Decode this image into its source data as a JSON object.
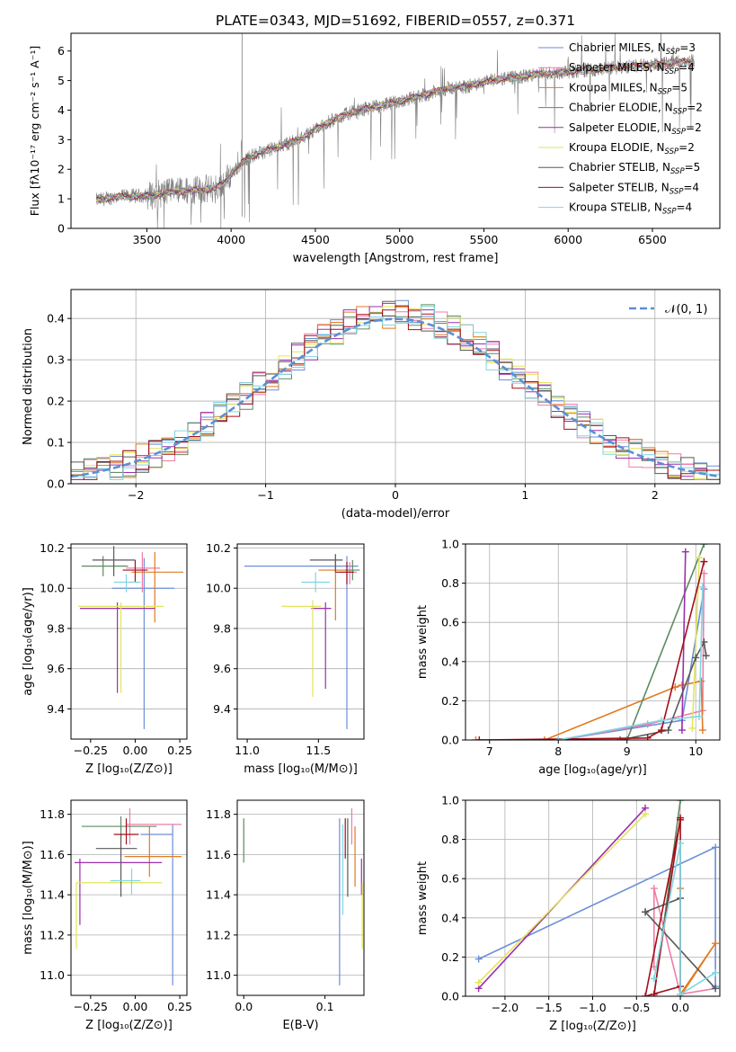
{
  "figure_title": "PLATE=0343, MJD=51692, FIBERID=0557, z=0.371",
  "colors": {
    "Chabrier MILES": "#6a8fd8",
    "Salpeter MILES": "#f07ca8",
    "Kroupa MILES": "#e07b24",
    "Chabrier ELODIE": "#5d8a60",
    "Salpeter ELODIE": "#9b2fae",
    "Kroupa ELODIE": "#e2e55a",
    "Chabrier STELIB": "#595959",
    "Salpeter STELIB": "#a0101a",
    "Kroupa STELIB": "#7ed6e2",
    "data": "#808080",
    "gauss": "#5b8fd6"
  },
  "legend_entries": [
    {
      "name": "Chabrier MILES",
      "nssp": "3"
    },
    {
      "name": "Salpeter MILES",
      "nssp": "4"
    },
    {
      "name": "Kroupa MILES",
      "nssp": "5"
    },
    {
      "name": "Chabrier ELODIE",
      "nssp": "2"
    },
    {
      "name": "Salpeter ELODIE",
      "nssp": "2"
    },
    {
      "name": "Kroupa ELODIE",
      "nssp": "2"
    },
    {
      "name": "Chabrier STELIB",
      "nssp": "5"
    },
    {
      "name": "Salpeter STELIB",
      "nssp": "4"
    },
    {
      "name": "Kroupa STELIB",
      "nssp": "4"
    }
  ],
  "chart_data": [
    {
      "id": "spectrum",
      "type": "line",
      "title": "PLATE=0343, MJD=51692, FIBERID=0557, z=0.371",
      "xlabel": "wavelength [Angstrom, rest frame]",
      "ylabel": "Flux [f_λ 10^-17 erg cm^-2 s^-1 A^-1]",
      "xlim": [
        3050,
        6900
      ],
      "ylim": [
        0,
        6.6
      ],
      "xticks": [
        3500,
        4000,
        4500,
        5000,
        5500,
        6000,
        6500
      ],
      "yticks": [
        0,
        1,
        2,
        3,
        4,
        5,
        6
      ],
      "x": [
        3200,
        3300,
        3400,
        3500,
        3600,
        3700,
        3800,
        3900,
        3950,
        4000,
        4100,
        4200,
        4300,
        4400,
        4500,
        4600,
        4700,
        4800,
        4900,
        5000,
        5100,
        5200,
        5300,
        5400,
        5500,
        5600,
        5700,
        5800,
        5900,
        6000,
        6100,
        6200,
        6300,
        6400,
        6500,
        6600,
        6750
      ],
      "continuum": [
        0.95,
        1.05,
        1.1,
        1.1,
        1.2,
        1.25,
        1.3,
        1.35,
        1.5,
        1.85,
        2.4,
        2.6,
        2.8,
        3.0,
        3.35,
        3.65,
        3.9,
        4.05,
        4.15,
        4.3,
        4.45,
        4.6,
        4.75,
        4.8,
        4.95,
        5.05,
        5.1,
        5.2,
        5.25,
        5.3,
        5.35,
        5.4,
        5.45,
        5.5,
        5.55,
        5.6,
        5.65
      ],
      "series": [
        {
          "name": "Chabrier MILES",
          "nssp": "3"
        },
        {
          "name": "Salpeter MILES",
          "nssp": "4"
        },
        {
          "name": "Kroupa MILES",
          "nssp": "5"
        },
        {
          "name": "Chabrier ELODIE",
          "nssp": "2"
        },
        {
          "name": "Salpeter ELODIE",
          "nssp": "2"
        },
        {
          "name": "Kroupa ELODIE",
          "nssp": "2"
        },
        {
          "name": "Chabrier STELIB",
          "nssp": "5"
        },
        {
          "name": "Salpeter STELIB",
          "nssp": "4"
        },
        {
          "name": "Kroupa STELIB",
          "nssp": "4"
        }
      ]
    },
    {
      "id": "residuals",
      "type": "line",
      "xlabel": "(data-model)/error",
      "ylabel": "Normed distribution",
      "xlim": [
        -2.5,
        2.5
      ],
      "ylim": [
        0,
        0.47
      ],
      "xticks": [
        -2,
        -1,
        0,
        1,
        2
      ],
      "yticks": [
        0.0,
        0.1,
        0.2,
        0.3,
        0.4
      ],
      "grid": true,
      "legend": "N(0,1)",
      "legend_position": "top-right",
      "bin_width": 0.1
    },
    {
      "id": "age-vs-Z",
      "type": "scatter",
      "xlabel": "Z [log10(Z/Z_sun)]",
      "ylabel": "age [log10(age/yr)]",
      "xlim": [
        -0.36,
        0.29
      ],
      "ylim": [
        9.25,
        10.22
      ],
      "xticks": [
        -0.25,
        0.0,
        0.25
      ],
      "yticks": [
        9.4,
        9.6,
        9.8,
        10.0,
        10.2
      ],
      "points": [
        {
          "name": "Chabrier MILES",
          "x": 0.05,
          "y": 10.0,
          "xerr": [
            0.18,
            0.17
          ],
          "yerr": [
            0.7,
            0.15
          ]
        },
        {
          "name": "Salpeter MILES",
          "x": 0.04,
          "y": 10.1,
          "xerr": [
            0.09,
            0.1
          ],
          "yerr": [
            0.12,
            0.08
          ]
        },
        {
          "name": "Kroupa MILES",
          "x": 0.11,
          "y": 10.08,
          "xerr": [
            0.13,
            0.16
          ],
          "yerr": [
            0.25,
            0.1
          ]
        },
        {
          "name": "Chabrier ELODIE",
          "x": -0.18,
          "y": 10.11,
          "xerr": [
            0.12,
            0.14
          ],
          "yerr": [
            0.05,
            0.05
          ]
        },
        {
          "name": "Salpeter ELODIE",
          "x": -0.1,
          "y": 9.9,
          "xerr": [
            0.21,
            0.21
          ],
          "yerr": [
            0.42,
            0.03
          ]
        },
        {
          "name": "Kroupa ELODIE",
          "x": -0.08,
          "y": 9.91,
          "xerr": [
            0.24,
            0.24
          ],
          "yerr": [
            0.43,
            0.02
          ]
        },
        {
          "name": "Chabrier STELIB",
          "x": -0.12,
          "y": 10.14,
          "xerr": [
            0.12,
            0.12
          ],
          "yerr": [
            0.08,
            0.07
          ]
        },
        {
          "name": "Salpeter STELIB",
          "x": 0.0,
          "y": 10.09,
          "xerr": [
            0.07,
            0.07
          ],
          "yerr": [
            0.06,
            0.05
          ]
        },
        {
          "name": "Kroupa STELIB",
          "x": -0.05,
          "y": 10.03,
          "xerr": [
            0.07,
            0.08
          ],
          "yerr": [
            0.05,
            0.04
          ]
        }
      ]
    },
    {
      "id": "age-vs-mass",
      "type": "scatter",
      "xlabel": "mass [log10(M/M_sun)]",
      "xlim": [
        10.93,
        11.82
      ],
      "ylim": [
        9.25,
        10.22
      ],
      "xticks": [
        11.0,
        11.5
      ],
      "yticks": [
        9.4,
        9.6,
        9.8,
        10.0,
        10.2
      ],
      "points": [
        {
          "name": "Chabrier MILES",
          "x": 11.7,
          "y": 10.11,
          "xerr": [
            0.72,
            0.08
          ],
          "yerr": [
            0.81,
            0.05
          ]
        },
        {
          "name": "Salpeter MILES",
          "x": 11.72,
          "y": 10.08,
          "xerr": [
            0.07,
            0.05
          ],
          "yerr": [
            0.06,
            0.05
          ]
        },
        {
          "name": "Kroupa MILES",
          "x": 11.62,
          "y": 10.09,
          "xerr": [
            0.12,
            0.08
          ],
          "yerr": [
            0.25,
            0.07
          ]
        },
        {
          "name": "Chabrier ELODIE",
          "x": 11.74,
          "y": 10.09,
          "xerr": [
            0.05,
            0.05
          ],
          "yerr": [
            0.05,
            0.05
          ]
        },
        {
          "name": "Salpeter ELODIE",
          "x": 11.55,
          "y": 9.9,
          "xerr": [
            0.1,
            0.04
          ],
          "yerr": [
            0.4,
            0.03
          ]
        },
        {
          "name": "Kroupa ELODIE",
          "x": 11.46,
          "y": 9.91,
          "xerr": [
            0.22,
            0.06
          ],
          "yerr": [
            0.45,
            0.03
          ]
        },
        {
          "name": "Chabrier STELIB",
          "x": 11.62,
          "y": 10.14,
          "xerr": [
            0.18,
            0.05
          ],
          "yerr": [
            0.06,
            0.03
          ]
        },
        {
          "name": "Salpeter STELIB",
          "x": 11.7,
          "y": 10.08,
          "xerr": [
            0.08,
            0.05
          ],
          "yerr": [
            0.06,
            0.05
          ]
        },
        {
          "name": "Kroupa STELIB",
          "x": 11.48,
          "y": 10.03,
          "xerr": [
            0.1,
            0.1
          ],
          "yerr": [
            0.05,
            0.05
          ]
        }
      ]
    },
    {
      "id": "mass-weight-vs-age",
      "type": "line",
      "xlabel": "age [log10(age/yr)]",
      "ylabel": "mass weight",
      "xlim": [
        6.65,
        10.35
      ],
      "ylim": [
        0,
        1.0
      ],
      "xticks": [
        7,
        8,
        9,
        10
      ],
      "yticks": [
        0.0,
        0.2,
        0.4,
        0.6,
        0.8,
        1.0
      ],
      "grid": true,
      "series": [
        {
          "name": "Chabrier MILES",
          "x": [
            8.0,
            9.8,
            10.12
          ],
          "y": [
            0.0,
            0.1,
            0.77
          ]
        },
        {
          "name": "Salpeter MILES",
          "x": [
            8.0,
            9.3,
            10.1,
            10.12
          ],
          "y": [
            0.0,
            0.08,
            0.15,
            0.85
          ]
        },
        {
          "name": "Kroupa MILES",
          "x": [
            6.8,
            7.8,
            9.7,
            9.8,
            10.08,
            10.1
          ],
          "y": [
            0.0,
            0.0,
            0.27,
            0.28,
            0.3,
            0.05
          ]
        },
        {
          "name": "Chabrier ELODIE",
          "x": [
            9.0,
            10.12
          ],
          "y": [
            0.0,
            1.0
          ]
        },
        {
          "name": "Salpeter ELODIE",
          "x": [
            9.8,
            9.85
          ],
          "y": [
            0.05,
            0.96
          ]
        },
        {
          "name": "Kroupa ELODIE",
          "x": [
            9.95,
            10.05
          ],
          "y": [
            0.06,
            0.93
          ]
        },
        {
          "name": "Chabrier STELIB",
          "x": [
            8.0,
            8.9,
            9.6,
            10.0,
            10.12,
            10.15
          ],
          "y": [
            0.0,
            0.0,
            0.05,
            0.42,
            0.5,
            0.43
          ]
        },
        {
          "name": "Salpeter STELIB",
          "x": [
            6.85,
            9.3,
            9.5,
            10.12
          ],
          "y": [
            0.0,
            0.01,
            0.05,
            0.91
          ]
        },
        {
          "name": "Kroupa STELIB",
          "x": [
            8.0,
            9.5,
            10.05,
            10.1
          ],
          "y": [
            0.0,
            0.1,
            0.12,
            0.78
          ]
        }
      ]
    },
    {
      "id": "mass-vs-Z",
      "type": "scatter",
      "xlabel": "Z [log10(Z/Z_sun)]",
      "ylabel": "mass [log10(M/M_sun)]",
      "xlim": [
        -0.36,
        0.29
      ],
      "ylim": [
        10.9,
        11.87
      ],
      "xticks": [
        -0.25,
        0.0,
        0.25
      ],
      "yticks": [
        11.0,
        11.2,
        11.4,
        11.6,
        11.8
      ],
      "points": [
        {
          "name": "Chabrier MILES",
          "x": 0.21,
          "y": 11.7,
          "xerr": [
            0.18,
            0.0
          ],
          "yerr": [
            0.75,
            0.05
          ]
        },
        {
          "name": "Salpeter MILES",
          "x": -0.03,
          "y": 11.75,
          "xerr": [
            0.02,
            0.29
          ],
          "yerr": [
            0.1,
            0.08
          ]
        },
        {
          "name": "Kroupa MILES",
          "x": 0.08,
          "y": 11.59,
          "xerr": [
            0.14,
            0.18
          ],
          "yerr": [
            0.1,
            0.15
          ]
        },
        {
          "name": "Chabrier ELODIE",
          "x": -0.08,
          "y": 11.74,
          "xerr": [
            0.22,
            0.2
          ],
          "yerr": [
            0.05,
            0.05
          ]
        },
        {
          "name": "Salpeter ELODIE",
          "x": -0.31,
          "y": 11.56,
          "xerr": [
            0.03,
            0.46
          ],
          "yerr": [
            0.31,
            0.02
          ]
        },
        {
          "name": "Kroupa ELODIE",
          "x": -0.33,
          "y": 11.46,
          "xerr": [
            0.0,
            0.48
          ],
          "yerr": [
            0.33,
            0.0
          ]
        },
        {
          "name": "Chabrier STELIB",
          "x": -0.08,
          "y": 11.63,
          "xerr": [
            0.14,
            0.09
          ],
          "yerr": [
            0.24,
            0.07
          ]
        },
        {
          "name": "Salpeter STELIB",
          "x": -0.05,
          "y": 11.7,
          "xerr": [
            0.07,
            0.07
          ],
          "yerr": [
            0.05,
            0.08
          ]
        },
        {
          "name": "Kroupa STELIB",
          "x": -0.02,
          "y": 11.47,
          "xerr": [
            0.12,
            0.05
          ],
          "yerr": [
            0.07,
            0.06
          ]
        }
      ]
    },
    {
      "id": "mass-vs-ebv",
      "type": "scatter",
      "xlabel": "E(B-V)",
      "xlim": [
        -0.008,
        0.148
      ],
      "ylim": [
        10.9,
        11.87
      ],
      "xticks": [
        0.0,
        0.1
      ],
      "yticks": [
        11.0,
        11.2,
        11.4,
        11.6,
        11.8
      ],
      "points": [
        {
          "name": "Chabrier MILES",
          "x": 0.118,
          "y": 11.7,
          "yerr": [
            0.75,
            0.08
          ]
        },
        {
          "name": "Salpeter MILES",
          "x": 0.133,
          "y": 11.75,
          "yerr": [
            0.1,
            0.08
          ]
        },
        {
          "name": "Kroupa MILES",
          "x": 0.137,
          "y": 11.59,
          "yerr": [
            0.15,
            0.15
          ]
        },
        {
          "name": "Chabrier ELODIE",
          "x": 0.0,
          "y": 11.68,
          "yerr": [
            0.12,
            0.1
          ]
        },
        {
          "name": "Salpeter ELODIE",
          "x": 0.145,
          "y": 11.5,
          "yerr": [
            0.1,
            0.08
          ]
        },
        {
          "name": "Kroupa ELODIE",
          "x": 0.146,
          "y": 11.3,
          "yerr": [
            0.17,
            0.16
          ]
        },
        {
          "name": "Chabrier STELIB",
          "x": 0.128,
          "y": 11.63,
          "yerr": [
            0.24,
            0.15
          ]
        },
        {
          "name": "Salpeter STELIB",
          "x": 0.125,
          "y": 11.7,
          "yerr": [
            0.12,
            0.08
          ]
        },
        {
          "name": "Kroupa STELIB",
          "x": 0.122,
          "y": 11.47,
          "yerr": [
            0.17,
            0.28
          ]
        }
      ]
    },
    {
      "id": "mass-weight-vs-Z",
      "type": "line",
      "xlabel": "Z [log10(Z/Z_sun)]",
      "ylabel": "mass weight",
      "xlim": [
        -2.45,
        0.45
      ],
      "ylim": [
        0,
        1.0
      ],
      "xticks": [
        -2.0,
        -1.5,
        -1.0,
        -0.5,
        0.0
      ],
      "yticks": [
        0.0,
        0.2,
        0.4,
        0.6,
        0.8,
        1.0
      ],
      "grid": true,
      "series": [
        {
          "name": "Chabrier MILES",
          "x": [
            -2.3,
            0.4,
            0.4
          ],
          "y": [
            0.19,
            0.76,
            0.05
          ]
        },
        {
          "name": "Salpeter MILES",
          "x": [
            -0.3,
            -0.3,
            0.0,
            0.4
          ],
          "y": [
            0.15,
            0.55,
            0.01,
            0.04
          ]
        },
        {
          "name": "Kroupa MILES",
          "x": [
            0.0,
            0.0,
            0.4,
            0.0
          ],
          "y": [
            0.55,
            0.01,
            0.27,
            0.0
          ]
        },
        {
          "name": "Chabrier ELODIE",
          "x": [
            -0.3,
            0.0
          ],
          "y": [
            0.0,
            1.0
          ]
        },
        {
          "name": "Salpeter ELODIE",
          "x": [
            -2.3,
            -0.4
          ],
          "y": [
            0.04,
            0.96
          ]
        },
        {
          "name": "Kroupa ELODIE",
          "x": [
            -2.3,
            -0.4
          ],
          "y": [
            0.07,
            0.93
          ]
        },
        {
          "name": "Chabrier STELIB",
          "x": [
            -0.4,
            0.0,
            -0.4,
            0.4
          ],
          "y": [
            0.43,
            0.5,
            0.43,
            0.04
          ]
        },
        {
          "name": "Salpeter STELIB",
          "x": [
            -0.3,
            0.0,
            0.0,
            -0.4,
            0.0
          ],
          "y": [
            0.01,
            0.91,
            0.05,
            0.0,
            0.9
          ]
        },
        {
          "name": "Kroupa STELIB",
          "x": [
            -0.3,
            0.0,
            0.0,
            0.4
          ],
          "y": [
            0.09,
            0.78,
            0.01,
            0.12
          ]
        }
      ]
    }
  ]
}
